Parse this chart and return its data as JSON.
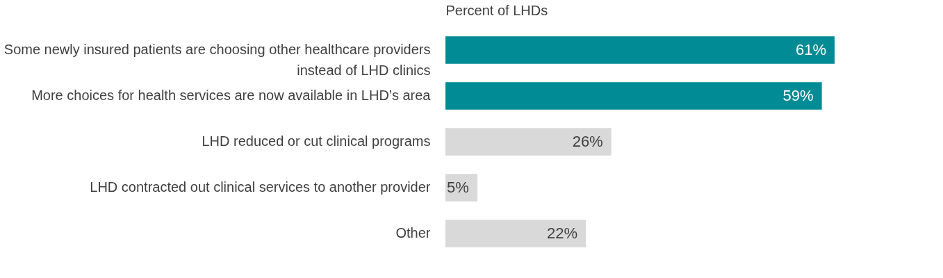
{
  "chart_data": {
    "type": "bar",
    "orientation": "horizontal",
    "xlabel": "Percent of LHDs",
    "categories": [
      "Some newly insured patients are choosing other healthcare providers instead of LHD clinics",
      "More choices for health services are now available in LHD’s area",
      "LHD reduced or cut clinical programs",
      "LHD contracted out clinical services to another provider",
      "Other"
    ],
    "values": [
      61,
      59,
      26,
      5,
      22
    ],
    "colors": [
      "#008b95",
      "#008b95",
      "#d9d9d9",
      "#d9d9d9",
      "#d9d9d9"
    ],
    "value_labels": [
      "61%",
      "59%",
      "26%",
      "5%",
      "22%"
    ],
    "xlim": [
      0,
      61
    ],
    "tick_labels": "y"
  }
}
